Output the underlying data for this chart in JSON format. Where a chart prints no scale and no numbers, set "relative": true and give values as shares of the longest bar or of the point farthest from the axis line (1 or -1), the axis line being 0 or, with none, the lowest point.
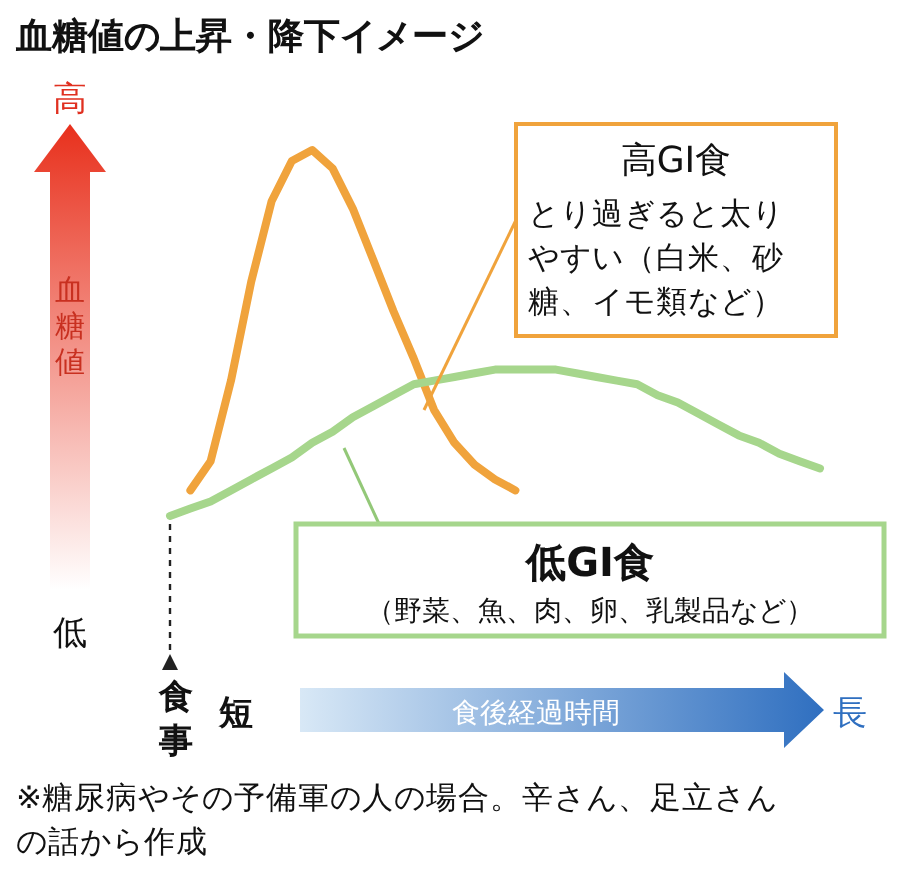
{
  "chart_data": {
    "type": "line",
    "relative": true,
    "title": "血糖値の上昇・降下イメージ",
    "ylabel": "血糖値",
    "categories": [
      null,
      null,
      null,
      null,
      null,
      null,
      null,
      null,
      null,
      null,
      null,
      null,
      null,
      null,
      null,
      null,
      null,
      null,
      null,
      null,
      null,
      null,
      null,
      null,
      null,
      null,
      null,
      null,
      null,
      null,
      null,
      null,
      null
    ],
    "series": [
      {
        "color": "#f0a33c",
        "values": [
          null,
          0.07,
          0.15,
          0.37,
          0.64,
          0.86,
          0.97,
          1.0,
          0.95,
          0.84,
          0.7,
          0.56,
          0.43,
          0.29,
          0.2,
          0.14,
          0.1,
          0.07,
          null,
          null,
          null,
          null,
          null,
          null,
          null,
          null,
          null,
          null,
          null,
          null,
          null,
          null,
          null
        ]
      },
      {
        "color": "#a6d68c",
        "values": [
          0,
          0.02,
          0.04,
          0.07,
          0.1,
          0.13,
          0.16,
          0.2,
          0.23,
          0.27,
          0.3,
          0.33,
          0.36,
          0.37,
          0.38,
          0.39,
          0.4,
          0.4,
          0.4,
          0.4,
          0.39,
          0.38,
          0.37,
          0.36,
          0.33,
          0.31,
          0.28,
          0.25,
          0.22,
          0.2,
          0.17,
          0.15,
          0.13
        ]
      }
    ],
    "annotations": [
      "高",
      "低",
      "食事",
      "短",
      "長",
      "高GI食",
      "とり過ぎると太りやすい（白米、砂糖、イモ類など）",
      "低GI食",
      "（野菜、魚、肉、卵、乳製品など）",
      "食後経過時間",
      "※糖尿病やその予備軍の人の場合。辛さん、足立さんの話から作成"
    ]
  }
}
